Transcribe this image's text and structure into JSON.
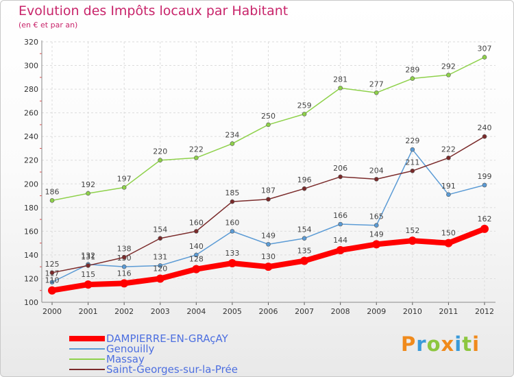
{
  "title": "Evolution des Impôts locaux par Habitant",
  "subtitle": "(en € et par an)",
  "logo": "Proxiti",
  "chart_data": {
    "type": "line",
    "categories": [
      "2000",
      "2001",
      "2002",
      "2003",
      "2004",
      "2005",
      "2006",
      "2007",
      "2008",
      "2009",
      "2010",
      "2011",
      "2012"
    ],
    "ylim": [
      100,
      320
    ],
    "yticks": [
      100,
      120,
      140,
      160,
      180,
      200,
      220,
      240,
      260,
      280,
      300,
      320
    ],
    "grid": true,
    "legend_position": "bottom-left",
    "series": [
      {
        "name": "DAMPIERRE-EN-GRAçAY",
        "color": "#ff0000",
        "values": [
          110,
          115,
          116,
          120,
          128,
          133,
          130,
          135,
          144,
          149,
          152,
          150,
          162
        ]
      },
      {
        "name": "Genouilly",
        "color": "#5b9bd5",
        "values": [
          117,
          132,
          130,
          131,
          140,
          160,
          149,
          154,
          166,
          165,
          229,
          191,
          199
        ]
      },
      {
        "name": "Massay",
        "color": "#8ed14a",
        "values": [
          186,
          192,
          197,
          220,
          222,
          234,
          250,
          259,
          281,
          277,
          289,
          292,
          307
        ]
      },
      {
        "name": "Saint-Georges-sur-la-Prée",
        "color": "#7a2a2a",
        "values": [
          125,
          131,
          138,
          154,
          160,
          185,
          187,
          196,
          206,
          204,
          211,
          222,
          240
        ]
      }
    ]
  }
}
